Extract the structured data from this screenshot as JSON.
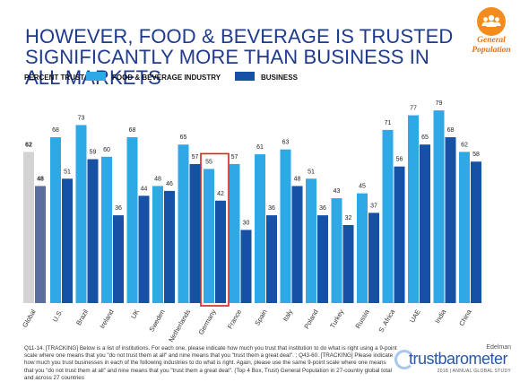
{
  "header": {
    "title_line1": "HOWEVER, FOOD & BEVERAGE IS TRUSTED",
    "title_line2": "SIGNIFICANTLY MORE THAN BUSINESS IN ALL MARKETS",
    "badge_icon": "people-group-icon",
    "badge_label": "General Population",
    "badge_color": "#f28c1c"
  },
  "legend": {
    "measure": "PERCENT TRUST",
    "food": "FOOD & BEVERAGE INDUSTRY",
    "business": "BUSINESS"
  },
  "colors": {
    "food": "#2fa9e5",
    "business": "#1651a6",
    "global_food": "#d3d3d3",
    "global_business": "#5a6fa0",
    "highlight": "#d7231c",
    "title": "#1f3b8c"
  },
  "chart_data": {
    "type": "bar",
    "categories": [
      "Global",
      "U.S.",
      "Brazil",
      "Ireland",
      "UK",
      "Sweden",
      "Netherlands",
      "Germany",
      "France",
      "Spain",
      "Italy",
      "Poland",
      "Turkey",
      "Russia",
      "S. Africa",
      "UAE",
      "India",
      "China"
    ],
    "series": [
      {
        "name": "FOOD & BEVERAGE INDUSTRY",
        "values": [
          62,
          68,
          73,
          60,
          68,
          48,
          65,
          55,
          57,
          61,
          63,
          51,
          43,
          45,
          71,
          77,
          79,
          62
        ]
      },
      {
        "name": "BUSINESS",
        "values": [
          48,
          51,
          59,
          36,
          44,
          46,
          57,
          42,
          30,
          36,
          48,
          36,
          32,
          37,
          56,
          65,
          68,
          58
        ]
      }
    ],
    "highlighted_category": "Germany",
    "ylim": [
      0,
      100
    ],
    "grid": false,
    "legend_position": "top-left",
    "xlabel": "",
    "ylabel": ""
  },
  "footnote": {
    "line1": "Q11-14. [TRACKING] Below is a list of institutions. For each one, please indicate how much you trust that institution to do what is right using a 9-point",
    "line2": "scale where one means that you \"do not trust them at all\" and nine means that you \"trust them a great deal\". ; Q43-60. [TRACKING] Please indicate",
    "line3": "how much you trust businesses in each of the following industries to do what is right.  Again, please use the same 9-point scale where one means",
    "line4": "that you \"do not trust them at all\" and nine means that you \"trust them a great deal\". (Top 4 Box, Trust) General Population in 27-country global total",
    "line5": "and across 27 countries"
  },
  "brand": {
    "company": "Edelman",
    "name": "trustbarometer",
    "subtitle": "2018 | ANNUAL GLOBAL STUDY"
  }
}
